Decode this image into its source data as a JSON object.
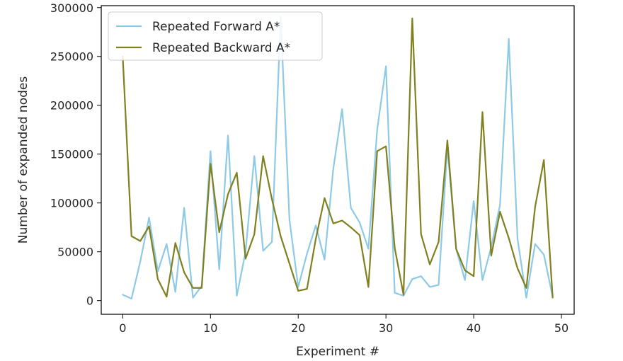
{
  "chart_data": {
    "type": "line",
    "title": "",
    "xlabel": "Experiment #",
    "ylabel": "Number of expanded nodes",
    "xlim": [
      -2.45,
      51.45
    ],
    "ylim": [
      -14000,
      302000
    ],
    "xticks": [
      0,
      10,
      20,
      30,
      40,
      50
    ],
    "yticks": [
      0,
      50000,
      100000,
      150000,
      200000,
      250000,
      300000
    ],
    "xtick_labels": [
      "0",
      "10",
      "20",
      "30",
      "40",
      "50"
    ],
    "ytick_labels": [
      "0",
      "50000",
      "100000",
      "150000",
      "200000",
      "250000",
      "300000"
    ],
    "grid": false,
    "legend_position": "top-left",
    "x": [
      0,
      1,
      2,
      3,
      4,
      5,
      6,
      7,
      8,
      9,
      10,
      11,
      12,
      13,
      14,
      15,
      16,
      17,
      18,
      19,
      20,
      21,
      22,
      23,
      24,
      25,
      26,
      27,
      28,
      29,
      30,
      31,
      32,
      33,
      34,
      35,
      36,
      37,
      38,
      39,
      40,
      41,
      42,
      43,
      44,
      45,
      46,
      47,
      48,
      49
    ],
    "series": [
      {
        "name": "Repeated Forward A*",
        "color": "#8ecae6",
        "values": [
          6000,
          2000,
          40000,
          85000,
          30000,
          58000,
          9000,
          95000,
          3000,
          15000,
          153000,
          32000,
          169000,
          5000,
          50000,
          148000,
          51000,
          60000,
          291000,
          83000,
          14000,
          48000,
          77000,
          42000,
          135000,
          196000,
          95000,
          80000,
          53000,
          175000,
          240000,
          8000,
          5000,
          22000,
          25000,
          14000,
          16000,
          157000,
          53000,
          21000,
          102000,
          21000,
          55000,
          98000,
          268000,
          63000,
          3000,
          58000,
          47000,
          4000
        ]
      },
      {
        "name": "Repeated Backward A*",
        "color": "#808020",
        "values": [
          250000,
          66000,
          61000,
          76000,
          22000,
          4000,
          59000,
          29000,
          13000,
          13000,
          140000,
          70000,
          109000,
          131000,
          43000,
          68000,
          148000,
          104000,
          66000,
          38000,
          10000,
          12000,
          63000,
          105000,
          79000,
          82000,
          75000,
          67000,
          14000,
          153000,
          158000,
          54000,
          6000,
          289000,
          68000,
          37000,
          60000,
          164000,
          53000,
          31000,
          25000,
          193000,
          46000,
          91000,
          64000,
          33000,
          13000,
          96000,
          144000,
          3000
        ]
      }
    ]
  }
}
